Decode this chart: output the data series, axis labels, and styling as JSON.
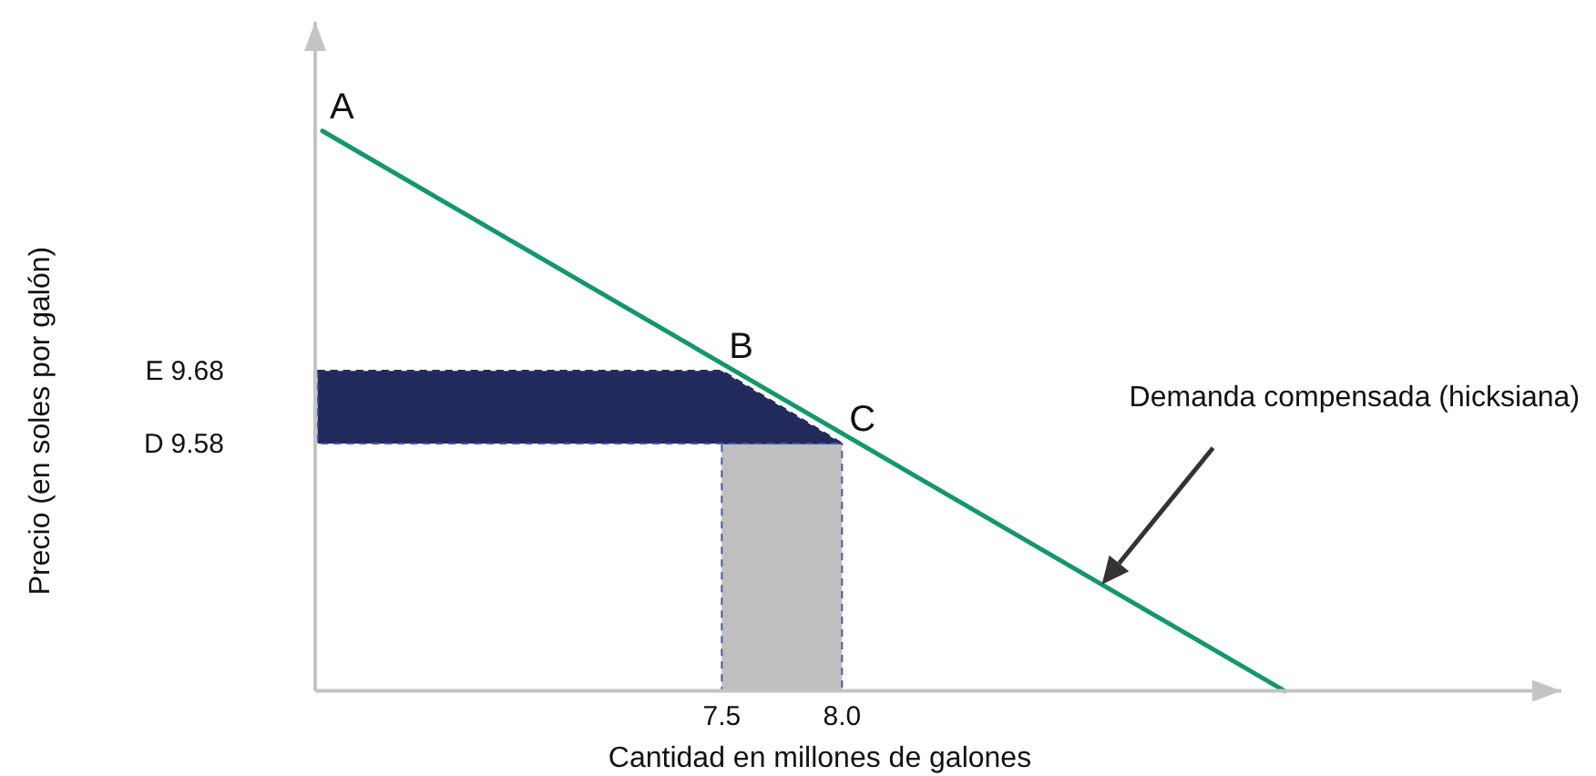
{
  "chart_data": {
    "type": "line",
    "xlabel": "Cantidad en millones de galones",
    "ylabel": "Precio (en soles por galón)",
    "xlim": [
      5.81,
      10.99
    ],
    "ylim": [
      9.24,
      10.16
    ],
    "xticks": [
      7.5,
      {
        "value": 8,
        "label": "8.0"
      }
    ],
    "yticks": [
      9.58,
      9.68
    ],
    "series": [
      {
        "type": "area",
        "color": "#bfbfbf",
        "x": [
          7.5,
          8
        ],
        "values": [
          9.58,
          9.58
        ],
        "line_style": "dashed"
      },
      {
        "type": "line",
        "color": "#222a5c",
        "x": [
          5.82,
          7.5,
          8
        ],
        "values": [
          9.68,
          9.68,
          9.58
        ],
        "lower": [
          9.58,
          9.58,
          9.58
        ],
        "upper": [
          9.68,
          9.68,
          9.58
        ],
        "line_style": "dashed"
      },
      {
        "color": "#16966b",
        "x": [
          5.84,
          9.84
        ],
        "values": [
          10.01,
          9.24
        ]
      }
    ],
    "annotations": [
      {
        "text": "A",
        "x": 5.84,
        "y": 10.01
      },
      {
        "text": "B",
        "x": 7.5,
        "y": 9.68
      },
      {
        "text": "C",
        "x": 8,
        "y": 9.58
      },
      "E",
      "D",
      "Demanda compensada (hicksiana)"
    ]
  }
}
